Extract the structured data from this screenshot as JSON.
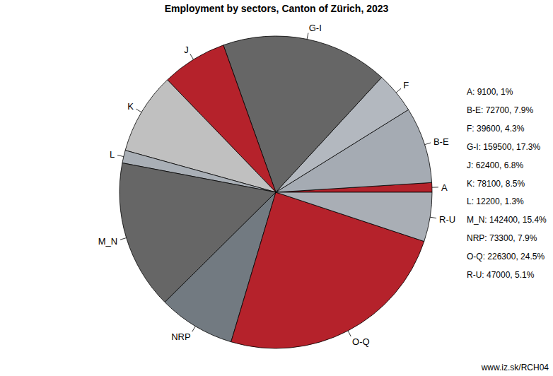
{
  "chart_data": {
    "type": "pie",
    "title": "Employment by sectors, Canton of Zürich, 2023",
    "categories": [
      "A",
      "B-E",
      "F",
      "G-I",
      "J",
      "K",
      "L",
      "M_N",
      "NRP",
      "O-Q",
      "R-U"
    ],
    "values": [
      9100,
      72700,
      39600,
      159500,
      62400,
      78100,
      12200,
      142400,
      73300,
      226300,
      47000
    ],
    "value_labels": [
      "A: 9100, 1%",
      "B-E: 72700, 7.9%",
      "F: 39600, 4.3%",
      "G-I: 159500, 17.3%",
      "J: 62400, 6.8%",
      "K: 78100, 8.5%",
      "L: 12200, 1.3%",
      "M_N: 142400, 15.4%",
      "NRP: 73300, 7.9%",
      "O-Q: 226300, 24.5%",
      "R-U: 47000, 5.1%"
    ],
    "colors": [
      "#b5222b",
      "#a5abb3",
      "#b3b8bf",
      "#666666",
      "#b5222b",
      "#c0c0c0",
      "#a9afb6",
      "#666666",
      "#727a81",
      "#b5222b",
      "#a9aeb5"
    ],
    "source": "www.iz.sk/RCH04"
  }
}
